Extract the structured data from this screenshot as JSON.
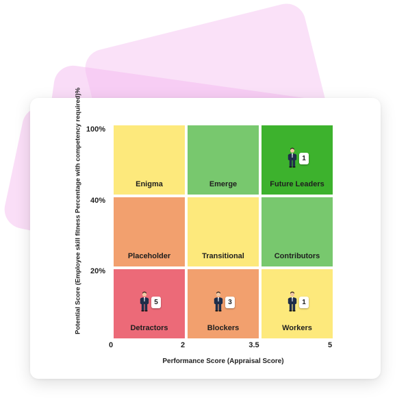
{
  "colors": {
    "yellow": "#fde97c",
    "light_green": "#78c86e",
    "dark_green": "#3db22d",
    "orange": "#f2a06e",
    "red": "#ec6a78",
    "decor_pink": "#f3b9ef"
  },
  "chart_data": {
    "type": "heatmap",
    "xlabel": "Performance Score (Appraisal Score)",
    "ylabel": "Potential Score (Employee skill fitness Percentage with competency required)%",
    "x_ticks": [
      "0",
      "2",
      "3.5",
      "5"
    ],
    "y_ticks": [
      "100%",
      "40%",
      "20%"
    ],
    "cells": [
      {
        "row": 0,
        "col": 0,
        "label": "Enigma",
        "color": "#fde97c",
        "count": null
      },
      {
        "row": 0,
        "col": 1,
        "label": "Emerge",
        "color": "#78c86e",
        "count": null
      },
      {
        "row": 0,
        "col": 2,
        "label": "Future Leaders",
        "color": "#3db22d",
        "count": "1"
      },
      {
        "row": 1,
        "col": 0,
        "label": "Placeholder",
        "color": "#f2a06e",
        "count": null
      },
      {
        "row": 1,
        "col": 1,
        "label": "Transitional",
        "color": "#fde97c",
        "count": null
      },
      {
        "row": 1,
        "col": 2,
        "label": "Contributors",
        "color": "#78c86e",
        "count": null
      },
      {
        "row": 2,
        "col": 0,
        "label": "Detractors",
        "color": "#ec6a78",
        "count": "5"
      },
      {
        "row": 2,
        "col": 1,
        "label": "Blockers",
        "color": "#f2a06e",
        "count": "3"
      },
      {
        "row": 2,
        "col": 2,
        "label": "Workers",
        "color": "#fde97c",
        "count": "1"
      }
    ],
    "marker_icon": "businessman-icon"
  }
}
